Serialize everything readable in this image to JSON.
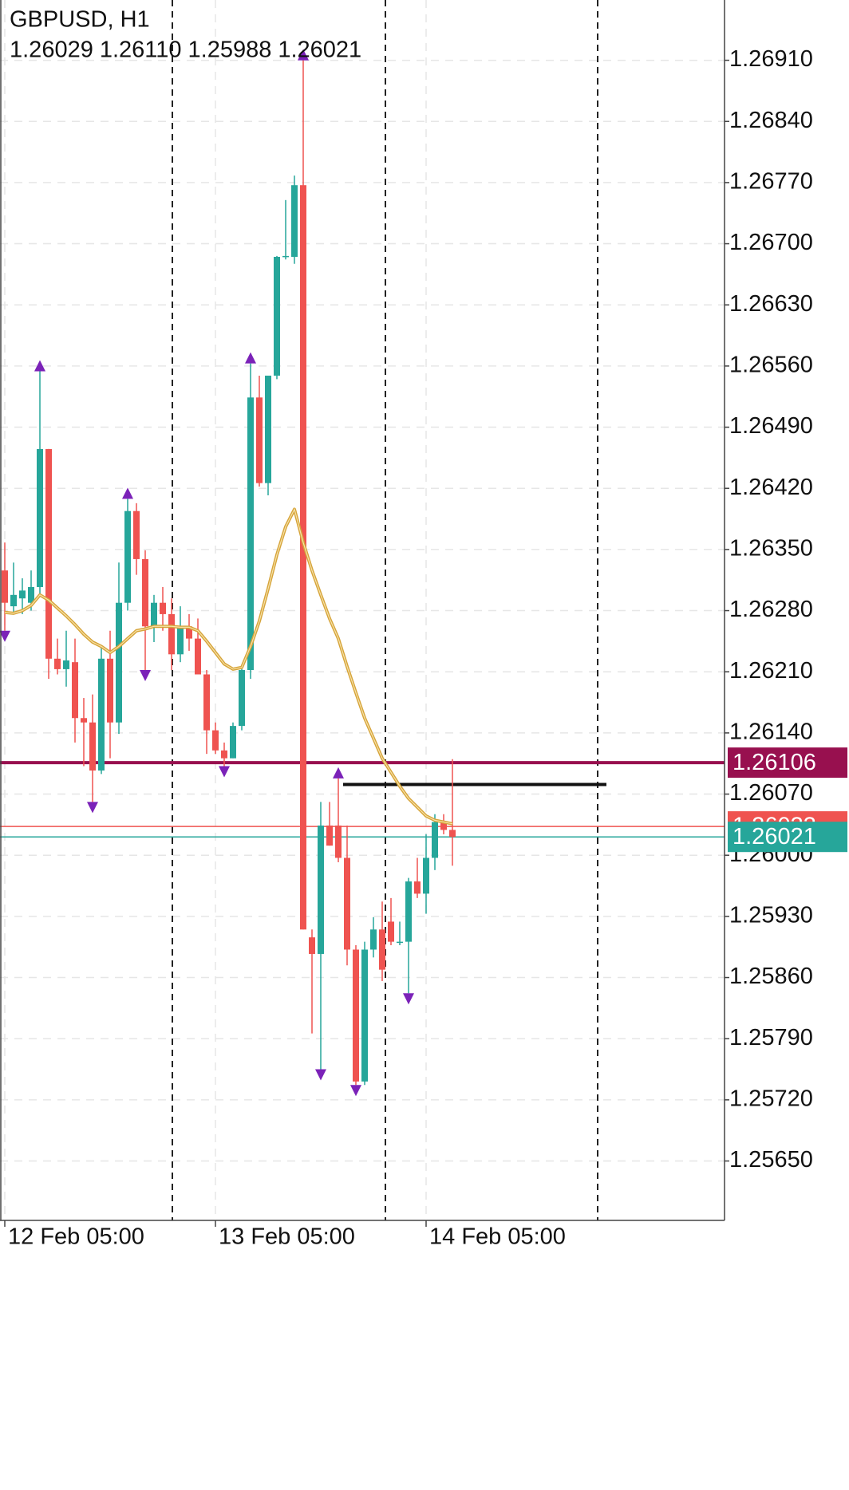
{
  "chart_data": {
    "type": "candlestick",
    "header": {
      "symbol": "GBPUSD, H1",
      "ohlc": [
        {
          "value": 1.26029,
          "label": "1.26029"
        },
        {
          "value": 1.2611,
          "label": "1.26110"
        },
        {
          "value": 1.25988,
          "label": "1.25988"
        },
        {
          "value": 1.26021,
          "label": "1.26021"
        }
      ]
    },
    "categories": [
      "12 Feb 05:00",
      null,
      null,
      null,
      null,
      null,
      null,
      null,
      null,
      null,
      null,
      null,
      null,
      null,
      null,
      null,
      null,
      null,
      null,
      null,
      null,
      null,
      null,
      null,
      "13 Feb 05:00",
      null,
      null,
      null,
      null,
      null,
      null,
      null,
      null,
      null,
      null,
      null,
      null,
      null,
      null,
      null,
      null,
      null,
      null,
      null,
      null,
      null,
      null,
      null,
      "14 Feb 05:00",
      null,
      null,
      null
    ],
    "open": [
      1.26326,
      1.26285,
      1.26294,
      1.26289,
      1.26307,
      1.26465,
      1.26225,
      1.26213,
      1.26221,
      1.26157,
      1.26152,
      1.26097,
      1.26225,
      1.26152,
      1.26289,
      1.26394,
      1.26339,
      1.26262,
      1.26289,
      1.26276,
      1.2623,
      1.26262,
      1.26248,
      1.26207,
      1.26143,
      1.2612,
      1.26111,
      1.26148,
      1.26212,
      1.26524,
      1.26426,
      1.26549,
      1.26685,
      1.26685,
      1.26767,
      1.25906,
      1.25887,
      1.26034,
      1.26034,
      1.25997,
      1.25892,
      1.25741,
      1.25892,
      1.25915,
      1.25924,
      1.25901,
      1.25901,
      1.2597,
      1.25956,
      1.25997,
      1.26038,
      1.26029
    ],
    "high": [
      1.26358,
      1.26335,
      1.26317,
      1.26326,
      1.26554,
      1.26465,
      1.26248,
      1.26257,
      1.26248,
      1.2618,
      1.26184,
      1.26239,
      1.26257,
      1.26335,
      1.26408,
      1.26403,
      1.26349,
      1.26298,
      1.26307,
      1.26294,
      1.26285,
      1.26276,
      1.26271,
      1.26212,
      1.26152,
      1.26129,
      1.26152,
      1.26216,
      1.26563,
      1.26549,
      1.26549,
      1.26686,
      1.2675,
      1.26778,
      1.2691,
      1.25915,
      1.26061,
      1.26061,
      1.26088,
      1.26034,
      1.25897,
      1.25901,
      1.25929,
      1.25947,
      1.25951,
      1.25924,
      1.25974,
      1.25997,
      1.26024,
      1.26047,
      1.26047,
      1.2611
    ],
    "low": [
      1.26257,
      1.26276,
      1.26276,
      1.2628,
      1.26298,
      1.26202,
      1.26207,
      1.26193,
      1.26129,
      1.26102,
      1.26061,
      1.26093,
      1.26111,
      1.26139,
      1.2628,
      1.26321,
      1.26212,
      1.26244,
      1.26257,
      1.26212,
      1.26221,
      1.26234,
      1.26207,
      1.26116,
      1.26116,
      1.26102,
      1.26111,
      1.26143,
      1.26202,
      1.26422,
      1.26412,
      1.26545,
      1.26682,
      1.26677,
      1.25915,
      1.25796,
      1.25755,
      1.26011,
      1.25992,
      1.25874,
      1.25737,
      1.25737,
      1.25883,
      1.25856,
      1.25897,
      1.25897,
      1.25842,
      1.25951,
      1.25933,
      1.25983,
      1.26024,
      1.25988
    ],
    "close": [
      1.26289,
      1.26298,
      1.26303,
      1.26307,
      1.26465,
      1.26225,
      1.26213,
      1.26223,
      1.26157,
      1.26152,
      1.26097,
      1.26225,
      1.26152,
      1.26289,
      1.26394,
      1.26339,
      1.26262,
      1.26289,
      1.26276,
      1.2623,
      1.26262,
      1.26248,
      1.26207,
      1.26143,
      1.2612,
      1.26111,
      1.26148,
      1.26212,
      1.26524,
      1.26426,
      1.26549,
      1.26685,
      1.26686,
      1.26767,
      1.25915,
      1.25887,
      1.26034,
      1.26011,
      1.25997,
      1.25892,
      1.25741,
      1.25892,
      1.25915,
      1.25869,
      1.25901,
      1.25901,
      1.2597,
      1.25956,
      1.25997,
      1.26038,
      1.26029,
      1.26021
    ],
    "moving_average": [
      1.26278,
      1.26277,
      1.2628,
      1.26286,
      1.26298,
      1.26292,
      1.26283,
      1.26274,
      1.26264,
      1.26253,
      1.26244,
      1.26239,
      1.26232,
      1.26239,
      1.26248,
      1.26257,
      1.26259,
      1.26262,
      1.26262,
      1.26262,
      1.26261,
      1.26261,
      1.26257,
      1.26245,
      1.26232,
      1.26219,
      1.26213,
      1.26215,
      1.26239,
      1.26268,
      1.26305,
      1.26344,
      1.26376,
      1.26396,
      1.26358,
      1.26326,
      1.26298,
      1.26271,
      1.26248,
      1.26216,
      1.26186,
      1.26157,
      1.26134,
      1.26111,
      1.26095,
      1.26079,
      1.26065,
      1.26055,
      1.26045,
      1.2604,
      1.26038,
      1.26036
    ],
    "fractal_up": [
      null,
      null,
      null,
      null,
      1.26554,
      null,
      null,
      null,
      null,
      null,
      null,
      null,
      null,
      null,
      1.26408,
      null,
      null,
      null,
      null,
      null,
      null,
      null,
      null,
      null,
      null,
      null,
      null,
      null,
      1.26563,
      null,
      null,
      null,
      null,
      null,
      1.2691,
      null,
      null,
      null,
      1.26088,
      null,
      null,
      null,
      null,
      null,
      null,
      null,
      null,
      null,
      null,
      null,
      null,
      null
    ],
    "fractal_down": [
      1.26257,
      null,
      null,
      null,
      null,
      null,
      null,
      null,
      null,
      null,
      1.26061,
      null,
      null,
      null,
      null,
      null,
      1.26212,
      null,
      null,
      null,
      null,
      null,
      null,
      null,
      null,
      1.26102,
      null,
      null,
      null,
      null,
      null,
      null,
      null,
      null,
      null,
      null,
      1.25755,
      null,
      null,
      null,
      1.25737,
      null,
      null,
      null,
      null,
      null,
      1.25842,
      null,
      null,
      null,
      null,
      null
    ],
    "up_color": "#26a69a",
    "down_color": "#ef5350",
    "ma_color": "#d6a43a",
    "fractal_color": "#7b22b8",
    "levels": [
      {
        "value": 1.26106,
        "color": "#98104f",
        "width": 4
      },
      {
        "value": 1.26033,
        "color": "#ef5350",
        "width": 1.5
      },
      {
        "value": 1.26021,
        "color": "#26a69a",
        "width": 1.5
      }
    ],
    "trend_line": {
      "value": 1.26081,
      "color": "#111111"
    },
    "ylim": [
      1.25582,
      1.26979
    ],
    "yticks": [
      {
        "value": 1.2691,
        "label": "1.26910"
      },
      {
        "value": 1.2684,
        "label": "1.26840"
      },
      {
        "value": 1.2677,
        "label": "1.26770"
      },
      {
        "value": 1.267,
        "label": "1.26700"
      },
      {
        "value": 1.2663,
        "label": "1.26630"
      },
      {
        "value": 1.2656,
        "label": "1.26560"
      },
      {
        "value": 1.2649,
        "label": "1.26490"
      },
      {
        "value": 1.2642,
        "label": "1.26420"
      },
      {
        "value": 1.2635,
        "label": "1.26350"
      },
      {
        "value": 1.2628,
        "label": "1.26280"
      },
      {
        "value": 1.2621,
        "label": "1.26210"
      },
      {
        "value": 1.2614,
        "label": "1.26140"
      },
      {
        "value": 1.2607,
        "label": "1.26070"
      },
      {
        "value": 1.26,
        "label": "1.26000"
      },
      {
        "value": 1.2593,
        "label": "1.25930"
      },
      {
        "value": 1.2586,
        "label": "1.25860"
      },
      {
        "value": 1.2579,
        "label": "1.25790"
      },
      {
        "value": 1.2572,
        "label": "1.25720"
      },
      {
        "value": 1.2565,
        "label": "1.25650"
      }
    ],
    "grid": true
  }
}
